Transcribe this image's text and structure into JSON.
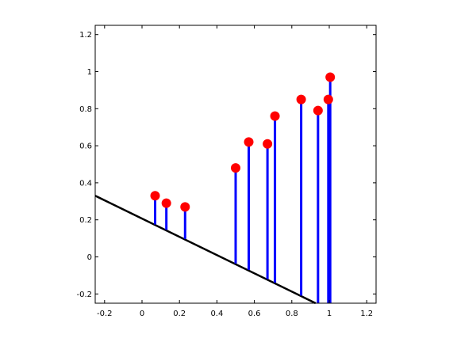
{
  "chart_data": {
    "type": "stem",
    "title": "",
    "xlabel": "",
    "ylabel": "",
    "xlim": [
      -0.25,
      1.25
    ],
    "ylim": [
      -0.25,
      1.25
    ],
    "grid": false,
    "x_ticks": [
      -0.2,
      0,
      0.2,
      0.4,
      0.6,
      0.8,
      1,
      1.2
    ],
    "x_tick_labels": [
      "-0.2",
      "0",
      "0.2",
      "0.4",
      "0.6",
      "0.8",
      "1",
      "1.2"
    ],
    "y_ticks": [
      -0.2,
      0,
      0.2,
      0.4,
      0.6,
      0.8,
      1,
      1.2
    ],
    "y_tick_labels": [
      "-0.2",
      "0",
      "0.2",
      "0.4",
      "0.6",
      "0.8",
      "1",
      "1.2"
    ],
    "line": {
      "x": [
        -0.25,
        0.927
      ],
      "y": [
        0.33,
        -0.25
      ],
      "color": "#000000"
    },
    "stems": {
      "x": [
        0.07,
        0.13,
        0.23,
        0.5,
        0.57,
        0.67,
        0.71,
        0.85,
        0.94,
        0.995,
        1.005
      ],
      "y": [
        0.33,
        0.29,
        0.27,
        0.48,
        0.62,
        0.61,
        0.76,
        0.85,
        0.79,
        0.85,
        0.97
      ],
      "base_y": [
        0.175,
        0.146,
        0.097,
        -0.036,
        -0.07,
        -0.12,
        -0.139,
        -0.209,
        -0.25,
        -0.25,
        -0.25
      ],
      "stem_color": "#0000ff",
      "marker_color": "#ff0000"
    }
  }
}
